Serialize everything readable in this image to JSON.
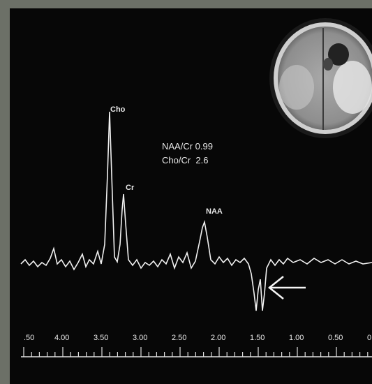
{
  "peaks": {
    "cho": "Cho",
    "cr": "Cr",
    "naa": "NAA"
  },
  "ratios": [
    "NAA/Cr 0.99",
    "Cho/Cr  2.6"
  ],
  "axis": {
    "labels": [
      ".50",
      "4.00",
      "3.50",
      "3.00",
      "2.50",
      "2.00",
      "1.50",
      "1.00",
      "0.50",
      "0"
    ]
  }
}
